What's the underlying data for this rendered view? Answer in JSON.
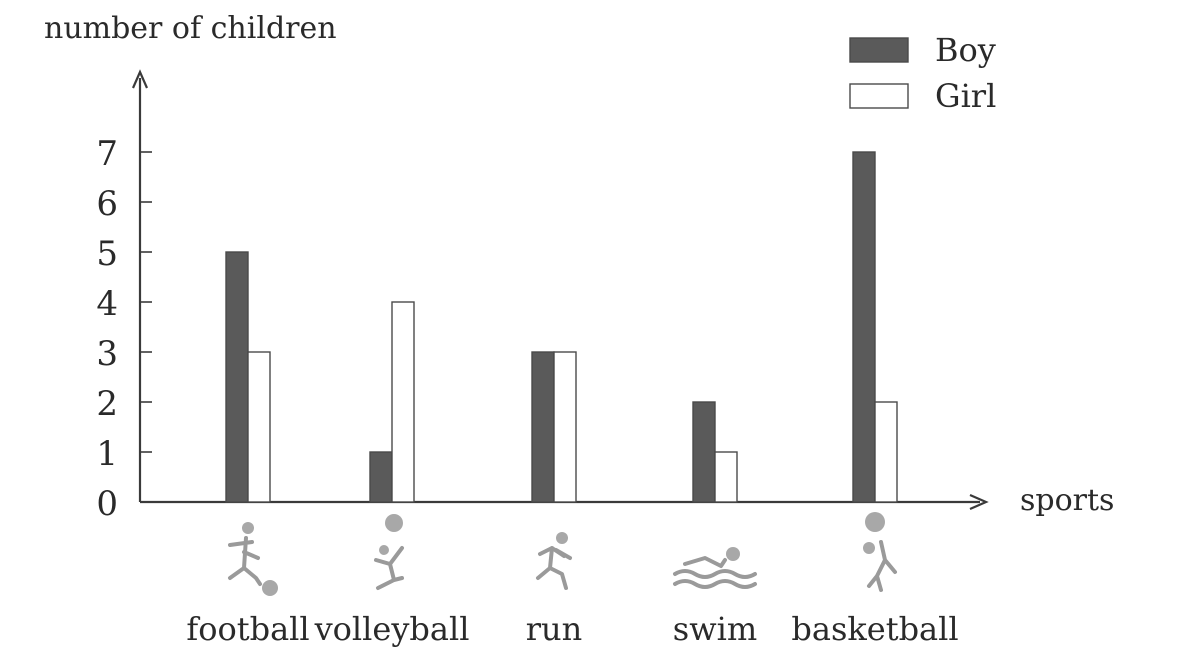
{
  "chart_data": {
    "type": "bar",
    "title": "",
    "ylabel": "number of children",
    "xlabel": "sports",
    "categories": [
      "football",
      "volleyball",
      "run",
      "swim",
      "basketball"
    ],
    "series": [
      {
        "name": "Boy",
        "values": [
          5,
          1,
          3,
          2,
          7
        ],
        "color": "#5a5a5a"
      },
      {
        "name": "Girl",
        "values": [
          3,
          4,
          3,
          1,
          2
        ],
        "color": "#ffffff"
      }
    ],
    "ylim": [
      0,
      7
    ],
    "yticks": [
      0,
      1,
      2,
      3,
      4,
      5,
      6,
      7
    ],
    "grid": false,
    "legend_position": "top-right",
    "category_icons": [
      "football-player-icon",
      "volleyball-player-icon",
      "runner-icon",
      "swimmer-icon",
      "basketball-player-icon"
    ]
  }
}
